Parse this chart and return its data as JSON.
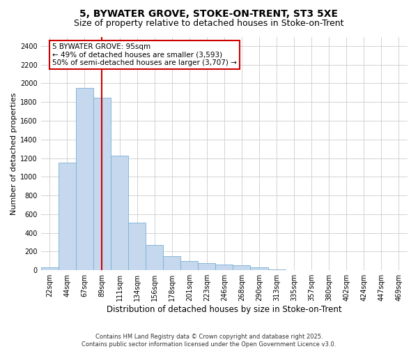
{
  "title1": "5, BYWATER GROVE, STOKE-ON-TRENT, ST3 5XE",
  "title2": "Size of property relative to detached houses in Stoke-on-Trent",
  "xlabel": "Distribution of detached houses by size in Stoke-on-Trent",
  "ylabel": "Number of detached properties",
  "bins": [
    "22sqm",
    "44sqm",
    "67sqm",
    "89sqm",
    "111sqm",
    "134sqm",
    "156sqm",
    "178sqm",
    "201sqm",
    "223sqm",
    "246sqm",
    "268sqm",
    "290sqm",
    "313sqm",
    "335sqm",
    "357sqm",
    "380sqm",
    "402sqm",
    "424sqm",
    "447sqm",
    "469sqm"
  ],
  "values": [
    35,
    1150,
    1950,
    1850,
    1230,
    510,
    270,
    150,
    100,
    75,
    65,
    55,
    28,
    10,
    5,
    3,
    2,
    1,
    1,
    0,
    0
  ],
  "bar_color": "#c5d8ee",
  "bar_edge_color": "#7aafd4",
  "vline_color": "#cc0000",
  "vline_x": 3.0,
  "annotation_text": "5 BYWATER GROVE: 95sqm\n← 49% of detached houses are smaller (3,593)\n50% of semi-detached houses are larger (3,707) →",
  "annotation_box_facecolor": "#ffffff",
  "annotation_box_edgecolor": "#cc0000",
  "ylim": [
    0,
    2500
  ],
  "yticks": [
    0,
    200,
    400,
    600,
    800,
    1000,
    1200,
    1400,
    1600,
    1800,
    2000,
    2200,
    2400
  ],
  "bg_color": "#ffffff",
  "plot_bg_color": "#ffffff",
  "grid_color": "#cccccc",
  "footer": "Contains HM Land Registry data © Crown copyright and database right 2025.\nContains public sector information licensed under the Open Government Licence v3.0.",
  "title_fontsize": 10,
  "subtitle_fontsize": 9,
  "tick_fontsize": 7,
  "ylabel_fontsize": 8,
  "xlabel_fontsize": 8.5,
  "ann_fontsize": 7.5
}
